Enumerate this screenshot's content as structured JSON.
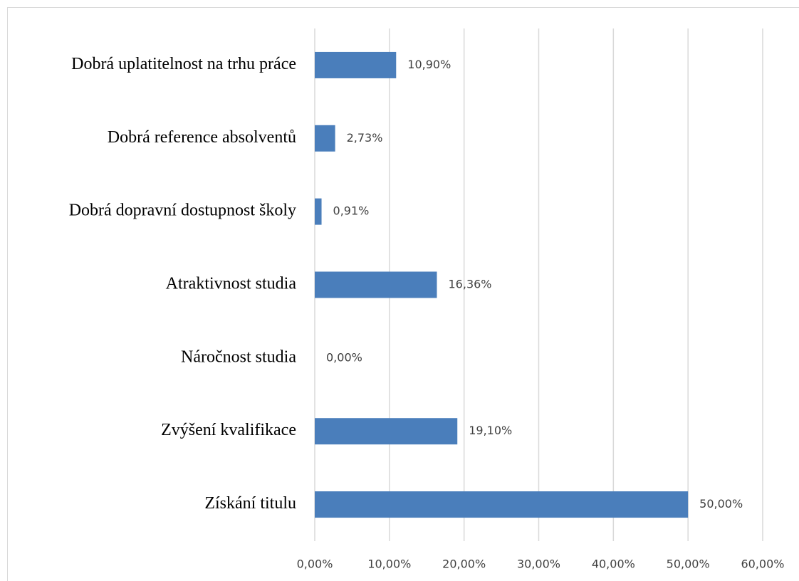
{
  "chart_data": {
    "type": "bar",
    "orientation": "horizontal",
    "categories": [
      "Dobrá uplatitelnost na trhu práce",
      "Dobrá reference absolventů",
      "Dobrá dopravní dostupnost školy",
      "Atraktivnost studia",
      "Náročnost studia",
      "Zvýšení kvalifikace",
      "Získání titulu"
    ],
    "values": [
      10.9,
      2.73,
      0.91,
      16.36,
      0,
      19.1,
      50
    ],
    "value_labels": [
      "10,90%",
      "2,73%",
      "0,91%",
      "16,36%",
      "0,00%",
      "19,10%",
      "50,00%"
    ],
    "color": "#4a7ebb",
    "xlim": [
      0,
      60
    ],
    "xticks": [
      {
        "value": 0,
        "label": "0,00%"
      },
      {
        "value": 10,
        "label": "10,00%"
      },
      {
        "value": 20,
        "label": "20,00%"
      },
      {
        "value": 30,
        "label": "30,00%"
      },
      {
        "value": 40,
        "label": "40,00%"
      },
      {
        "value": 50,
        "label": "50,00%"
      },
      {
        "value": 60,
        "label": "60,00%"
      }
    ],
    "grid": true
  }
}
